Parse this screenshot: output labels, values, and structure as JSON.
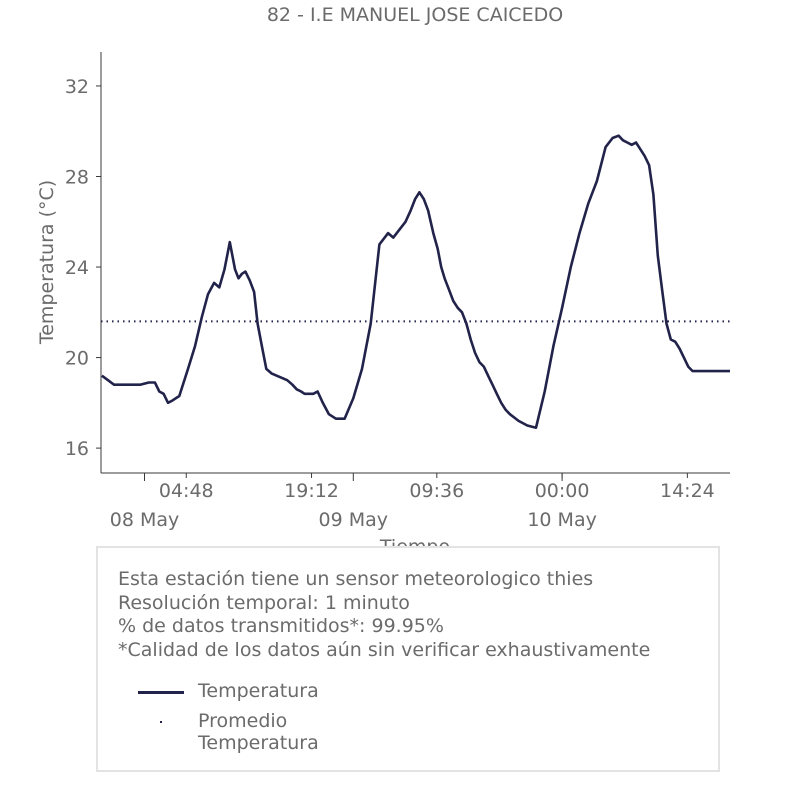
{
  "chart_data": {
    "type": "line",
    "title": "82 - I.E MANUEL JOSE CAICEDO",
    "xlabel": "Tiempo",
    "ylabel": "Temperatura (°C)",
    "ylim": [
      14.9,
      33.5
    ],
    "xlim_hours": [
      -5.0,
      67.3
    ],
    "x_ticks": [
      {
        "label": "04:48",
        "hours": 4.8
      },
      {
        "label": "19:12",
        "hours": 19.2
      },
      {
        "label": "09:36",
        "hours": 33.6
      },
      {
        "label": "00:00",
        "hours": 48.0
      },
      {
        "label": "14:24",
        "hours": 62.4
      }
    ],
    "date_labels": [
      {
        "label": "08 May",
        "hours": 0
      },
      {
        "label": "09 May",
        "hours": 24
      },
      {
        "label": "10 May",
        "hours": 48
      }
    ],
    "y_ticks": [
      16,
      20,
      24,
      28,
      32
    ],
    "grid": false,
    "series": [
      {
        "name": "Temperatura",
        "color": "#22234a",
        "style": "solid",
        "x_hours": [
          -4.9,
          -4.2,
          -3.5,
          -2.5,
          -1.5,
          -0.5,
          0.5,
          1.2,
          1.7,
          2.2,
          2.7,
          3.2,
          4.0,
          5.0,
          5.8,
          6.6,
          7.3,
          8.0,
          8.6,
          9.2,
          9.8,
          10.4,
          10.8,
          11.2,
          11.6,
          12.1,
          12.6,
          13.0,
          13.5,
          14.0,
          14.6,
          15.2,
          15.8,
          16.4,
          17.0,
          17.5,
          18.0,
          18.4,
          18.9,
          19.4,
          19.9,
          20.5,
          21.2,
          22.0,
          23.0,
          24.0,
          25.0,
          26.0,
          27.0,
          28.0,
          28.6,
          29.2,
          30.0,
          30.6,
          31.1,
          31.6,
          32.1,
          32.6,
          33.2,
          33.7,
          34.1,
          34.5,
          35.0,
          35.5,
          36.0,
          36.5,
          37.0,
          37.5,
          38.0,
          38.5,
          39.0,
          39.5,
          40.0,
          40.5,
          41.0,
          41.5,
          42.0,
          43.0,
          44.0,
          45.0,
          46.0,
          47.0,
          48.0,
          49.0,
          50.0,
          51.0,
          52.0,
          53.0,
          53.8,
          54.5,
          55.0,
          55.5,
          56.0,
          56.5,
          57.0,
          57.5,
          58.0,
          58.5,
          59.0,
          59.5,
          60.0,
          60.5,
          61.0,
          61.5,
          62.0,
          62.5,
          63.0,
          63.5,
          64.0,
          64.5,
          65.0,
          65.5,
          66.0,
          66.5,
          67.0,
          67.3
        ],
        "values": [
          19.2,
          19.0,
          18.8,
          18.8,
          18.8,
          18.8,
          18.9,
          18.9,
          18.5,
          18.4,
          18.0,
          18.1,
          18.3,
          19.5,
          20.5,
          21.8,
          22.8,
          23.3,
          23.1,
          23.9,
          25.1,
          23.9,
          23.5,
          23.7,
          23.8,
          23.4,
          22.9,
          21.5,
          20.5,
          19.5,
          19.3,
          19.2,
          19.1,
          19.0,
          18.8,
          18.6,
          18.5,
          18.4,
          18.4,
          18.4,
          18.5,
          18.0,
          17.5,
          17.3,
          17.3,
          18.2,
          19.5,
          21.5,
          25.0,
          25.5,
          25.3,
          25.6,
          26.0,
          26.5,
          27.0,
          27.3,
          27.0,
          26.5,
          25.5,
          24.8,
          24.0,
          23.5,
          23.0,
          22.5,
          22.2,
          22.0,
          21.5,
          20.8,
          20.2,
          19.8,
          19.6,
          19.2,
          18.8,
          18.4,
          18.0,
          17.7,
          17.5,
          17.2,
          17.0,
          16.9,
          18.5,
          20.5,
          22.2,
          24.0,
          25.5,
          26.8,
          27.8,
          29.3,
          29.7,
          29.8,
          29.6,
          29.5,
          29.4,
          29.5,
          29.2,
          28.9,
          28.5,
          27.2,
          24.5,
          23.0,
          21.5,
          20.8,
          20.7,
          20.4,
          20.0,
          19.6,
          19.4,
          19.4,
          19.4,
          19.4,
          19.4,
          19.4,
          19.4,
          19.4,
          19.4,
          19.4
        ],
        "values_note": ""
      },
      {
        "name": "Promedio Temperatura",
        "color": "#22234a",
        "style": "dotted",
        "value": 21.6
      }
    ],
    "legend_position": "bottom (inside info box)"
  },
  "info": {
    "line1": "Esta estación tiene un sensor meteorologico thies",
    "line2": "Resolución temporal: 1 minuto",
    "line3": "% de datos transmitidos*: 99.95%",
    "line4": "*Calidad de los datos aún sin verificar exhaustivamente"
  },
  "legend": {
    "item1": "Temperatura",
    "item2": "Promedio Temperatura"
  }
}
